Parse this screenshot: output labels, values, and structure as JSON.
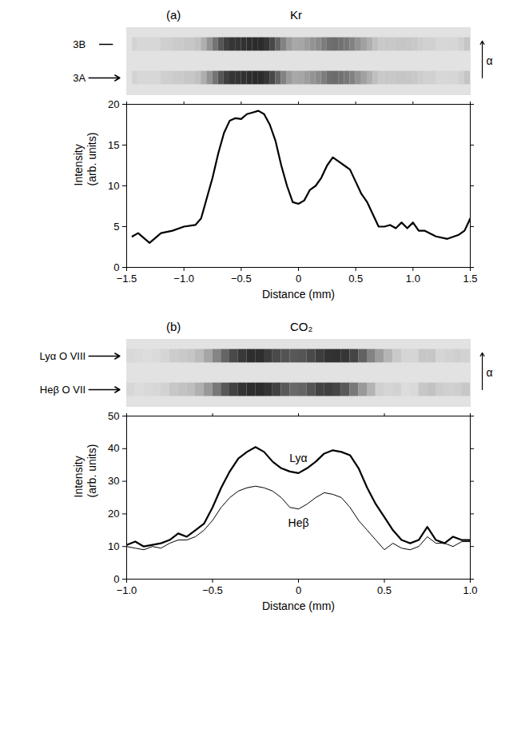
{
  "chart_data": [
    {
      "type": "line",
      "panel": "(a)",
      "title": "Kr",
      "xlabel": "Distance (mm)",
      "ylabel": "Intensity (arb. units)",
      "xlim": [
        -1.5,
        1.5
      ],
      "xticks": [
        -1.5,
        {
          "value": -1,
          "label": "−1.0"
        },
        -0.5,
        0,
        0.5,
        {
          "value": 1,
          "label": "1.0"
        },
        1.5
      ],
      "ylim": [
        0,
        20
      ],
      "yticks": [
        0,
        5,
        10,
        15,
        20
      ],
      "image": {
        "axis_label": "α",
        "rows": [
          {
            "label": "3B",
            "marker": "dash",
            "series": 0
          },
          {
            "label": "3A",
            "marker": "arrow",
            "series": 0
          }
        ]
      },
      "x": [
        -1.45,
        -1.4,
        -1.3,
        -1.2,
        -1.1,
        -1.0,
        -0.9,
        -0.85,
        -0.8,
        -0.75,
        -0.7,
        -0.65,
        -0.6,
        -0.55,
        -0.5,
        -0.45,
        -0.4,
        -0.35,
        -0.3,
        -0.25,
        -0.2,
        -0.15,
        -0.1,
        -0.05,
        0,
        0.05,
        0.1,
        0.15,
        0.2,
        0.25,
        0.3,
        0.35,
        0.4,
        0.45,
        0.5,
        0.55,
        0.6,
        0.65,
        0.7,
        0.75,
        0.8,
        0.85,
        0.9,
        0.95,
        1.0,
        1.05,
        1.1,
        1.2,
        1.3,
        1.4,
        1.45,
        1.5
      ],
      "series": [
        {
          "color": "#000000",
          "line_style": "bold",
          "values": [
            3.8,
            4.2,
            3.0,
            4.2,
            4.5,
            5,
            5.2,
            6,
            8.5,
            11,
            14,
            16.5,
            18,
            18.3,
            18.2,
            18.8,
            19,
            19.2,
            18.8,
            17.5,
            15.5,
            12.5,
            10,
            8,
            7.8,
            8.2,
            9.5,
            10,
            11,
            12.5,
            13.5,
            13,
            12.5,
            12,
            10.5,
            9,
            8,
            6.5,
            5,
            5,
            5.2,
            4.8,
            5.5,
            4.8,
            5.5,
            4.5,
            4.5,
            3.8,
            3.5,
            4,
            4.5,
            6
          ]
        }
      ]
    },
    {
      "type": "line",
      "panel": "(b)",
      "title": "CO₂",
      "xlabel": "Distance (mm)",
      "ylabel": "Intensity (arb. units)",
      "xlim": [
        -1,
        1
      ],
      "xticks": [
        {
          "value": -1,
          "label": "−1.0"
        },
        -0.5,
        0,
        0.5,
        {
          "value": 1,
          "label": "1.0"
        }
      ],
      "ylim": [
        0,
        50
      ],
      "yticks": [
        0,
        10,
        20,
        30,
        40,
        50
      ],
      "image": {
        "axis_label": "α",
        "rows": [
          {
            "label": "Lyα O VIII",
            "marker": "arrow",
            "series": 0
          },
          {
            "label": "Heβ O VII",
            "marker": "arrow",
            "series": 1
          }
        ]
      },
      "x": [
        -1,
        -0.95,
        -0.9,
        -0.85,
        -0.8,
        -0.75,
        -0.7,
        -0.65,
        -0.6,
        -0.55,
        -0.5,
        -0.45,
        -0.4,
        -0.35,
        -0.3,
        -0.25,
        -0.2,
        -0.15,
        -0.1,
        -0.05,
        0,
        0.05,
        0.1,
        0.15,
        0.2,
        0.25,
        0.3,
        0.35,
        0.4,
        0.45,
        0.5,
        0.55,
        0.6,
        0.65,
        0.7,
        0.75,
        0.8,
        0.85,
        0.9,
        0.95,
        1.0
      ],
      "series": [
        {
          "name": "Lyα",
          "color": "#000000",
          "line_style": "bold",
          "values": [
            10.5,
            11.5,
            10,
            10.5,
            11,
            12,
            14,
            13,
            15,
            17,
            22,
            28,
            33,
            37,
            39,
            40.5,
            39,
            36,
            34,
            33,
            32.5,
            34,
            36,
            38.5,
            39.5,
            39,
            38,
            34,
            28,
            23,
            19,
            15,
            12,
            11,
            12,
            16,
            12,
            11,
            13,
            12,
            12
          ]
        },
        {
          "name": "Heβ",
          "color": "#000000",
          "line_style": "solid",
          "values": [
            10,
            9.5,
            9,
            10,
            9.5,
            11,
            12,
            12,
            13,
            15,
            18,
            22,
            25,
            27,
            28,
            28.5,
            28,
            27,
            25,
            22,
            21.5,
            23,
            25,
            26.5,
            26,
            25,
            22,
            18,
            15,
            12,
            9,
            11,
            9.5,
            9,
            10,
            13,
            11,
            11,
            10,
            11.5,
            11.5
          ]
        }
      ]
    }
  ]
}
